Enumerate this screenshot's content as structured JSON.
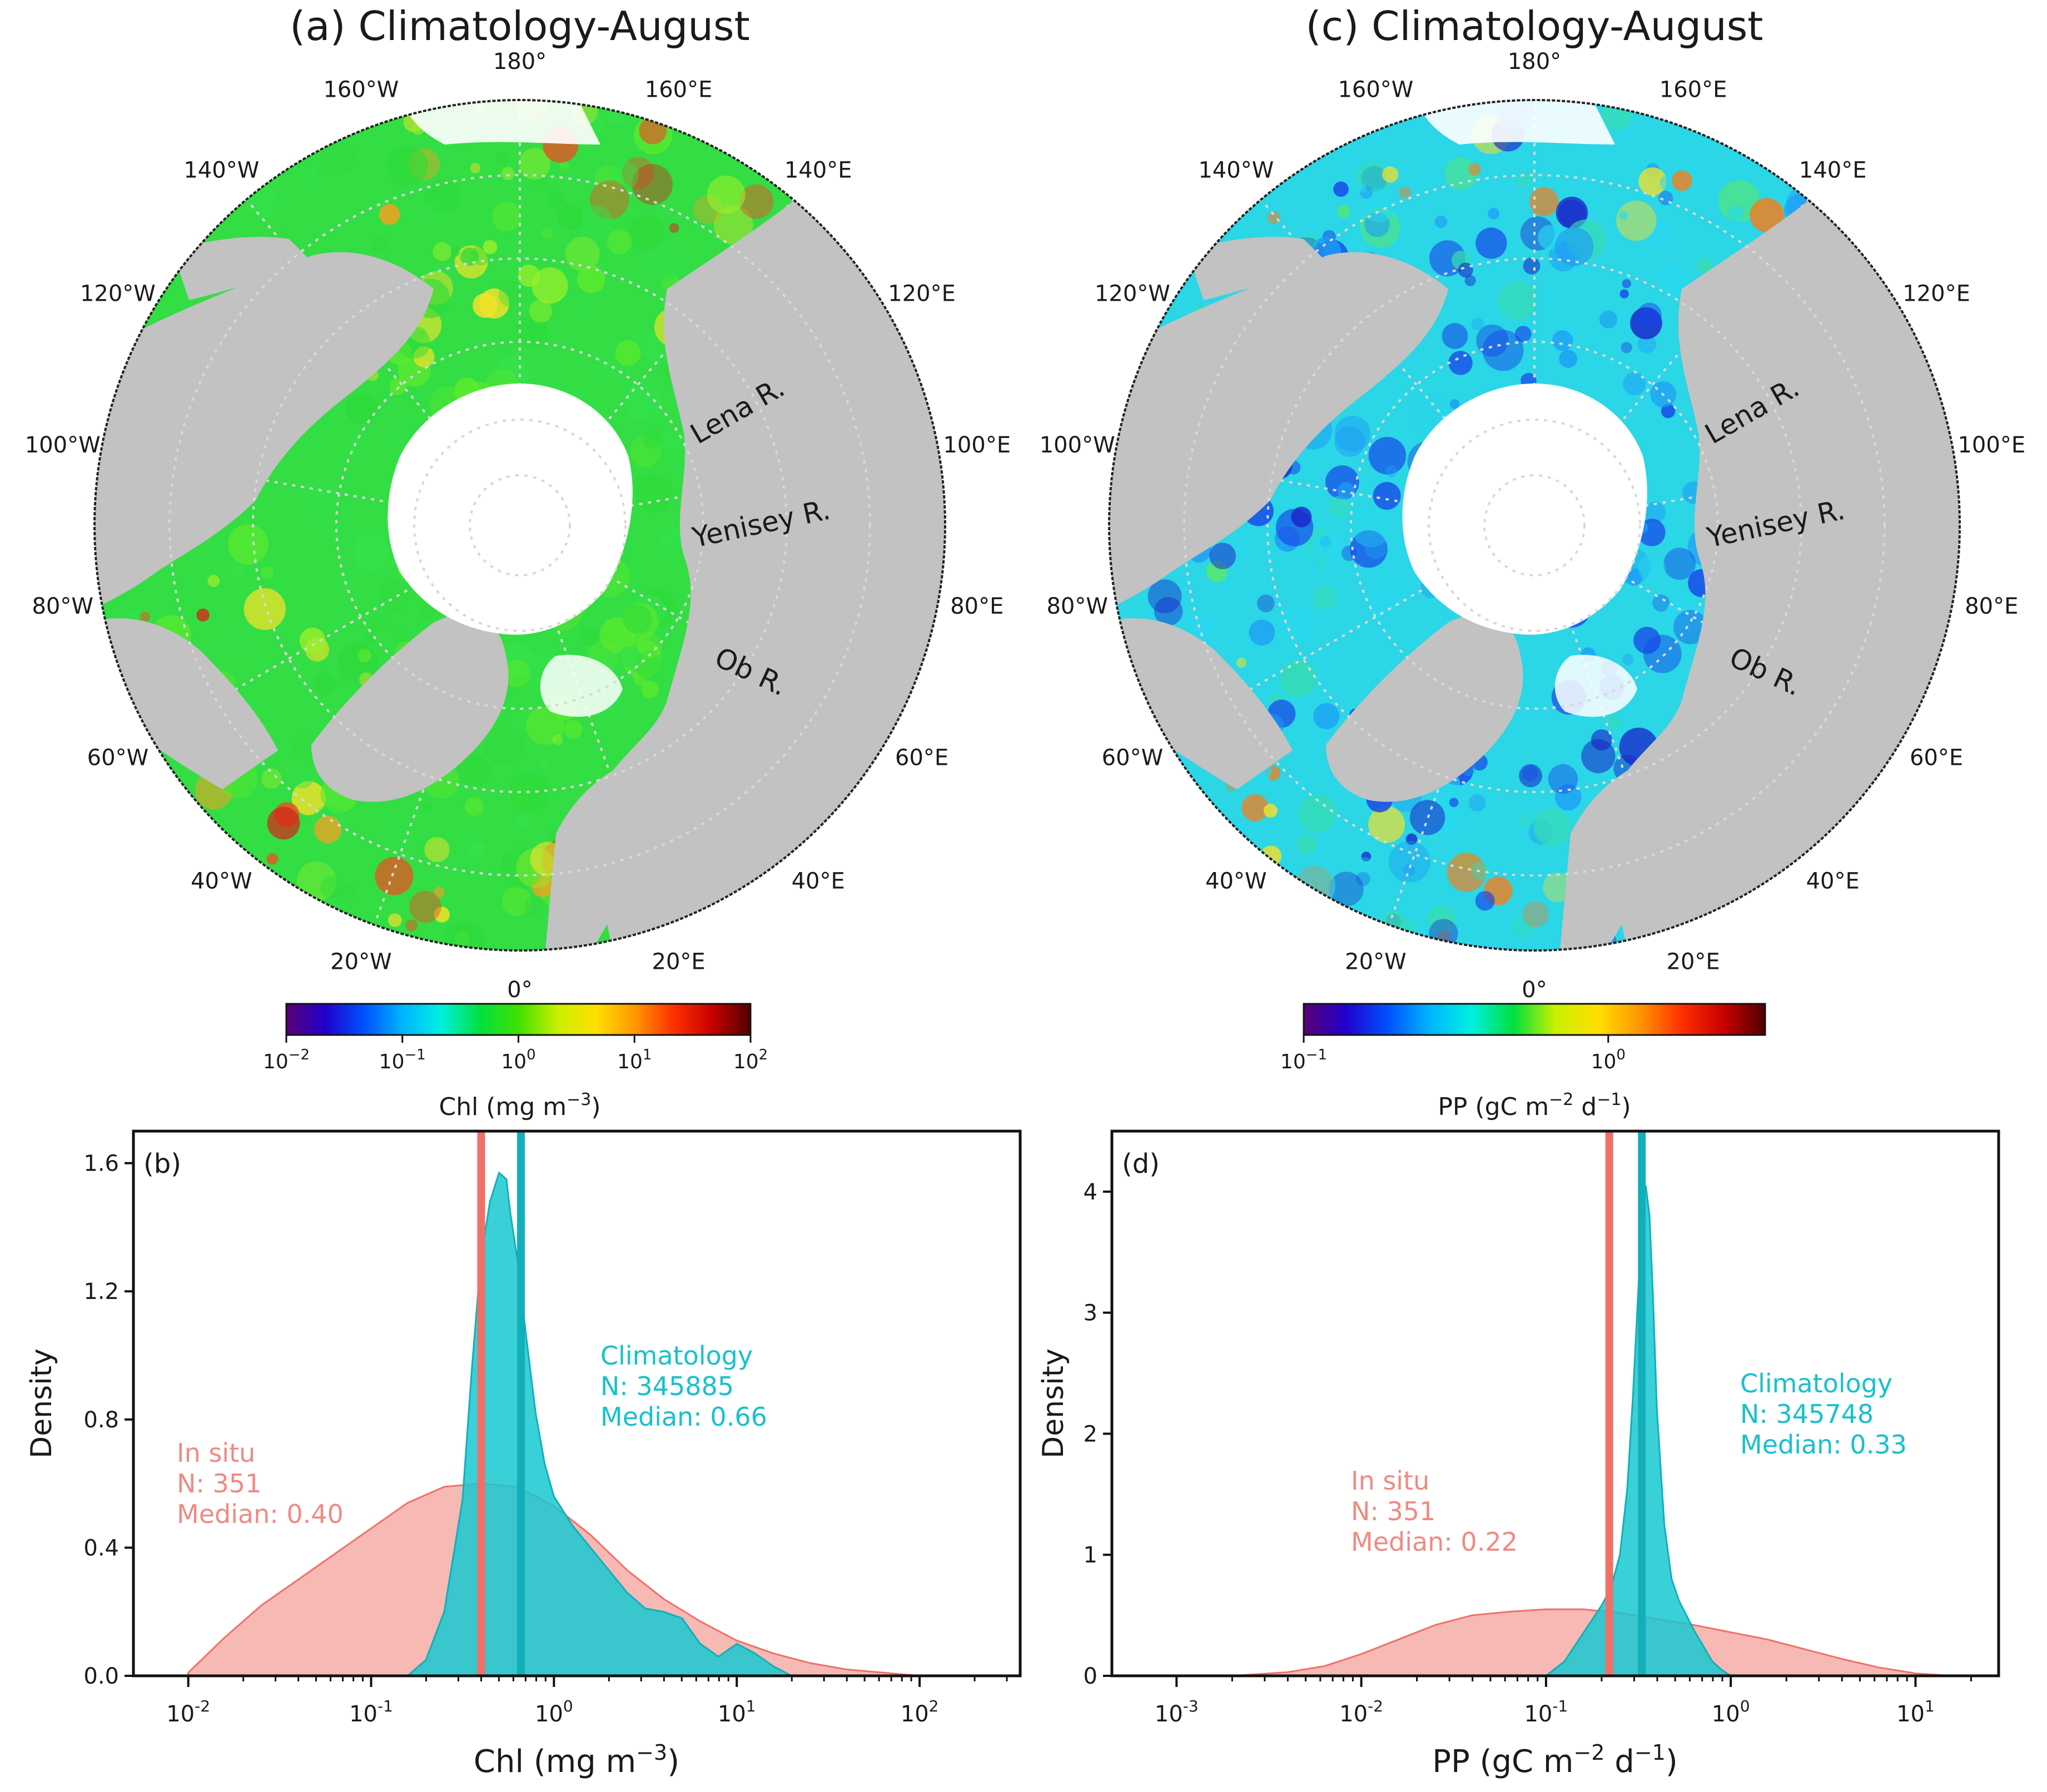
{
  "colors": {
    "insitu": "#F08A82",
    "insitu_line": "#F07068",
    "climatology": "#17C8D0",
    "climatology_line": "#12AFBA",
    "land": "#C2C2C2",
    "ice": "#FFFFFF"
  },
  "maps": [
    {
      "id": "a",
      "title": "(a) Climatology-August",
      "lon_labels": [
        "180°",
        "160°E",
        "140°E",
        "120°E",
        "100°E",
        "80°E",
        "60°E",
        "40°E",
        "20°E",
        "0°",
        "20°W",
        "40°W",
        "60°W",
        "80°W",
        "100°W",
        "120°W",
        "140°W",
        "160°W"
      ],
      "rivers": [
        "Lena R.",
        "Yenisey R.",
        "Ob R."
      ],
      "colorbar": {
        "gradient": [
          "#5a0075",
          "#2000cc",
          "#0050ff",
          "#00b4ff",
          "#00f0e0",
          "#00e040",
          "#40e000",
          "#c8f000",
          "#ffe000",
          "#ff9800",
          "#ff3000",
          "#c80000",
          "#500000"
        ],
        "ticks": [
          "10",
          "10",
          "10",
          "10",
          "10"
        ],
        "exponents": [
          "−2",
          "−1",
          "0",
          "1",
          "2"
        ],
        "label": "Chl (mg m",
        "label_exp": "−3",
        "label_end": ")"
      },
      "palette": [
        "#33E24A",
        "#2EDB3A",
        "#5BEA2E",
        "#9AF02A",
        "#F2E22A",
        "#F7A022",
        "#F24A22",
        "#D62418"
      ],
      "ocean_base": "#33DD44"
    },
    {
      "id": "c",
      "title": "(c) Climatology-August",
      "lon_labels": [
        "180°",
        "160°E",
        "140°E",
        "120°E",
        "100°E",
        "80°E",
        "60°E",
        "40°E",
        "20°E",
        "0°",
        "20°W",
        "40°W",
        "60°W",
        "80°W",
        "100°W",
        "120°W",
        "140°W",
        "160°W"
      ],
      "rivers": [
        "Lena R.",
        "Yenisey R.",
        "Ob R."
      ],
      "colorbar": {
        "gradient": [
          "#5a0075",
          "#2000cc",
          "#0050ff",
          "#00b4ff",
          "#00f0e0",
          "#00e040",
          "#c8f000",
          "#ffe000",
          "#ff9800",
          "#ff3000",
          "#c80000",
          "#500000"
        ],
        "ticks": [
          "10",
          "10"
        ],
        "exponents": [
          "−1",
          "0"
        ],
        "label": "PP (gC m",
        "label_exp": "−2",
        "label_mid": " d",
        "label_exp2": "−1",
        "label_end": ")"
      },
      "palette": [
        "#28D8F0",
        "#1E9BF5",
        "#1846E8",
        "#1A22C8",
        "#36DDB0",
        "#58E86A",
        "#F0E030",
        "#F08020"
      ],
      "ocean_base": "#2BD6E6"
    }
  ],
  "chart_data": [
    {
      "id": "b",
      "type": "area",
      "panel_label": "(b)",
      "xscale": "log",
      "xlim": [
        -2.3,
        2.55
      ],
      "ylim": [
        0,
        1.7
      ],
      "xticks": [
        {
          "base": "10",
          "exp": "-2",
          "v": -2
        },
        {
          "base": "10",
          "exp": "-1",
          "v": -1
        },
        {
          "base": "10",
          "exp": "0",
          "v": 0
        },
        {
          "base": "10",
          "exp": "1",
          "v": 1
        },
        {
          "base": "10",
          "exp": "2",
          "v": 2
        }
      ],
      "yticks": [
        "0.0",
        "0.4",
        "0.8",
        "1.2",
        "1.6"
      ],
      "ytick_values": [
        0,
        0.4,
        0.8,
        1.2,
        1.6
      ],
      "xlabel": "Chl (mg m",
      "xlabel_exp": "−3",
      "xlabel_end": ")",
      "ylabel": "Density",
      "series": [
        {
          "name": "In situ",
          "log10_x": [
            -2.0,
            -1.8,
            -1.6,
            -1.4,
            -1.2,
            -1.0,
            -0.8,
            -0.6,
            -0.4,
            -0.2,
            0.0,
            0.2,
            0.4,
            0.6,
            0.8,
            1.0,
            1.2,
            1.4,
            1.6,
            1.8,
            2.0
          ],
          "density": [
            0.01,
            0.12,
            0.22,
            0.3,
            0.38,
            0.46,
            0.54,
            0.59,
            0.6,
            0.59,
            0.53,
            0.44,
            0.33,
            0.24,
            0.17,
            0.11,
            0.07,
            0.04,
            0.02,
            0.01,
            0.0
          ],
          "median": 0.4,
          "stats": [
            "In situ",
            "N: 351",
            "Median: 0.40"
          ]
        },
        {
          "name": "Climatology",
          "log10_x": [
            -0.8,
            -0.7,
            -0.6,
            -0.5,
            -0.45,
            -0.4,
            -0.35,
            -0.3,
            -0.26,
            -0.24,
            -0.2,
            -0.15,
            -0.1,
            -0.05,
            0.0,
            0.1,
            0.2,
            0.3,
            0.4,
            0.5,
            0.6,
            0.7,
            0.8,
            0.9,
            1.0,
            1.1,
            1.2,
            1.3
          ],
          "density": [
            0.0,
            0.05,
            0.2,
            0.55,
            0.95,
            1.3,
            1.48,
            1.57,
            1.55,
            1.45,
            1.3,
            1.05,
            0.82,
            0.66,
            0.56,
            0.47,
            0.4,
            0.33,
            0.26,
            0.21,
            0.2,
            0.18,
            0.1,
            0.06,
            0.1,
            0.07,
            0.03,
            0.0
          ],
          "median": 0.66,
          "stats": [
            "Climatology",
            "N: 345885",
            "Median: 0.66"
          ]
        }
      ]
    },
    {
      "id": "d",
      "type": "area",
      "panel_label": "(d)",
      "xscale": "log",
      "xlim": [
        -3.35,
        1.45
      ],
      "ylim": [
        0,
        4.5
      ],
      "xticks": [
        {
          "base": "10",
          "exp": "-3",
          "v": -3
        },
        {
          "base": "10",
          "exp": "-2",
          "v": -2
        },
        {
          "base": "10",
          "exp": "-1",
          "v": -1
        },
        {
          "base": "10",
          "exp": "0",
          "v": 0
        },
        {
          "base": "10",
          "exp": "1",
          "v": 1
        }
      ],
      "yticks": [
        "0",
        "1",
        "2",
        "3",
        "4"
      ],
      "ytick_values": [
        0,
        1,
        2,
        3,
        4
      ],
      "xlabel": "PP (gC m",
      "xlabel_exp": "−2",
      "xlabel_mid": " d",
      "xlabel_exp2": "−1",
      "xlabel_end": ")",
      "ylabel": "Density",
      "series": [
        {
          "name": "In situ",
          "log10_x": [
            -2.7,
            -2.4,
            -2.2,
            -2.0,
            -1.8,
            -1.6,
            -1.4,
            -1.2,
            -1.0,
            -0.8,
            -0.6,
            -0.4,
            -0.2,
            0.0,
            0.2,
            0.4,
            0.6,
            0.8,
            1.0,
            1.2
          ],
          "density": [
            0.0,
            0.03,
            0.08,
            0.18,
            0.3,
            0.42,
            0.5,
            0.53,
            0.55,
            0.55,
            0.52,
            0.47,
            0.42,
            0.36,
            0.3,
            0.22,
            0.14,
            0.07,
            0.02,
            0.0
          ],
          "median": 0.22,
          "stats": [
            "In situ",
            "N: 351",
            "Median: 0.22"
          ]
        },
        {
          "name": "Climatology",
          "log10_x": [
            -1.0,
            -0.9,
            -0.8,
            -0.7,
            -0.65,
            -0.6,
            -0.56,
            -0.53,
            -0.5,
            -0.48,
            -0.46,
            -0.44,
            -0.42,
            -0.4,
            -0.36,
            -0.32,
            -0.28,
            -0.24,
            -0.2,
            -0.15,
            -0.1,
            -0.05,
            0.0
          ],
          "density": [
            0.0,
            0.12,
            0.35,
            0.58,
            0.72,
            1.0,
            1.55,
            2.3,
            3.2,
            3.8,
            4.05,
            3.8,
            3.1,
            2.2,
            1.25,
            0.8,
            0.62,
            0.5,
            0.38,
            0.25,
            0.12,
            0.05,
            0.0
          ],
          "median": 0.33,
          "stats": [
            "Climatology",
            "N: 345748",
            "Median: 0.33"
          ]
        }
      ]
    }
  ]
}
